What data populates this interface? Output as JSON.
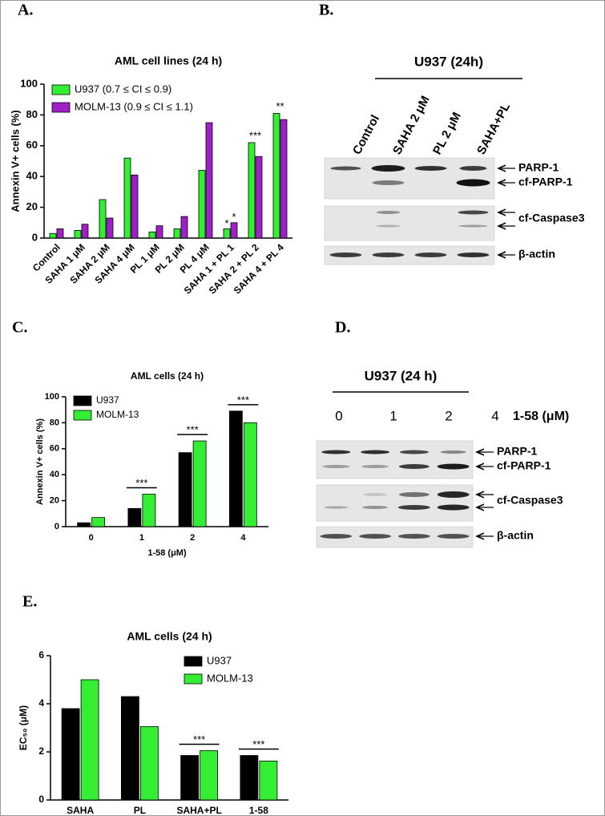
{
  "panel_labels": [
    "A.",
    "B.",
    "C.",
    "D.",
    "E."
  ],
  "chart_data": [
    {
      "type": "bar",
      "title": "AML cell lines (24 h)",
      "y_label": "Annexin V+ cells (%)",
      "categories": [
        "Control",
        "SAHA 1 μM",
        "SAHA 2 μM",
        "SAHA 4 μM",
        "PL 1 μM",
        "PL 2 μM",
        "PL 4 μM",
        "SAHA 1 + PL 1",
        "SAHA 2 + PL 2",
        "SAHA 4 + PL 4"
      ],
      "series": [
        {
          "name": "U937 (0.7 ≤ CI ≤ 0.9)",
          "color": "#33ee33",
          "values": [
            3,
            5,
            25,
            52,
            4,
            6,
            44,
            6,
            62,
            81
          ]
        },
        {
          "name": "MOLM-13 (0.9 ≤ CI ≤ 1.1)",
          "color": "#a020c8",
          "values": [
            6,
            9,
            13,
            41,
            8,
            14,
            75,
            10,
            53,
            77
          ]
        }
      ],
      "ylim": [
        0,
        100
      ],
      "yticks": [
        0,
        20,
        40,
        60,
        80,
        100
      ],
      "annotations": [
        {
          "text": "*",
          "category": 7,
          "series": 0
        },
        {
          "text": "*",
          "category": 7,
          "series": 1
        },
        {
          "text": "***",
          "category": 8
        },
        {
          "text": "**",
          "category": 9
        }
      ]
    },
    {
      "type": "bar",
      "title": "AML cells (24 h)",
      "y_label": "Annexin V+ cells (%)",
      "x_label": "1-58 (μM)",
      "categories": [
        "0",
        "1",
        "2",
        "4"
      ],
      "series": [
        {
          "name": "U937",
          "color": "#000000",
          "values": [
            3,
            14,
            57,
            89
          ]
        },
        {
          "name": "MOLM-13",
          "color": "#33ee33",
          "values": [
            7,
            25,
            66,
            80
          ]
        }
      ],
      "ylim": [
        0,
        100
      ],
      "yticks": [
        0,
        20,
        40,
        60,
        80,
        100
      ],
      "annotations": [
        {
          "text": "***",
          "category": 1,
          "bracket": true
        },
        {
          "text": "***",
          "category": 2,
          "bracket": true
        },
        {
          "text": "***",
          "category": 3,
          "bracket": true
        }
      ]
    },
    {
      "type": "bar",
      "title": "AML cells (24 h)",
      "y_label": "EC₅₀ (μM)",
      "categories": [
        "SAHA",
        "PL",
        "SAHA+PL",
        "1-58"
      ],
      "series": [
        {
          "name": "U937",
          "color": "#000000",
          "values": [
            3.8,
            4.3,
            1.85,
            1.85
          ]
        },
        {
          "name": "MOLM-13",
          "color": "#33ee33",
          "values": [
            5.0,
            3.05,
            2.05,
            1.62
          ]
        }
      ],
      "ylim": [
        0,
        6
      ],
      "yticks": [
        0,
        2,
        4,
        6
      ],
      "annotations": [
        {
          "text": "***",
          "category": 2,
          "bracket": true
        },
        {
          "text": "***",
          "category": 3,
          "bracket": true
        }
      ]
    }
  ],
  "blots": [
    {
      "title": "U937 (24h)",
      "lanes": [
        "Control",
        "SAHA 2 μM",
        "PL 2 μM",
        "SAHA+PL"
      ],
      "bands": [
        "PARP-1",
        "cf-PARP-1",
        "cf-Caspase3",
        "β-actin"
      ]
    },
    {
      "title": "U937 (24 h)",
      "lanes": [
        "0",
        "1",
        "2",
        "4"
      ],
      "lane_unit": "1-58 (μM)",
      "bands": [
        "PARP-1",
        "cf-PARP-1",
        "cf-Caspase3",
        "β-actin"
      ]
    }
  ]
}
